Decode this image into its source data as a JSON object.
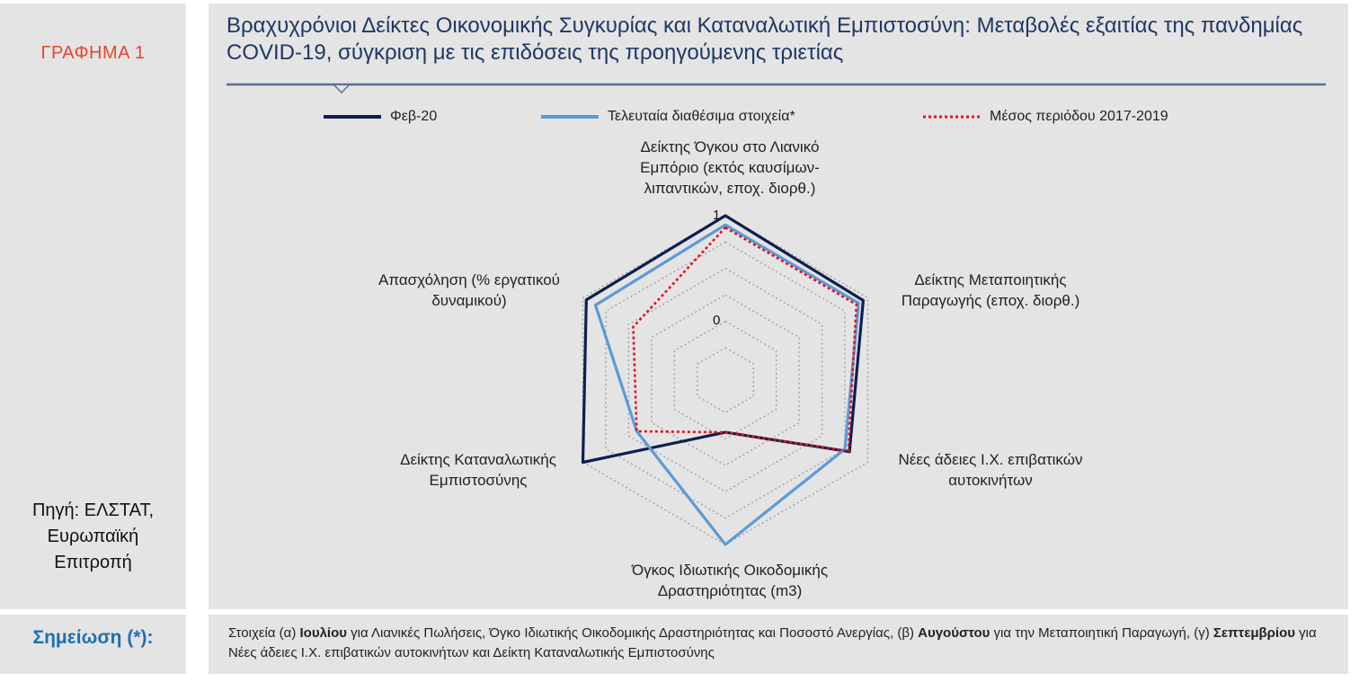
{
  "left_panel": {
    "chart_label": "ΓΡΑΦΗΜΑ 1",
    "source": "Πηγή: ΕΛΣΤΑΤ,\nΕυρωπαϊκή\nΕπιτροπή"
  },
  "title": "Βραχυχρόνιοι Δείκτες Οικονομικής Συγκυρίας και Καταναλωτική Εμπιστοσύνη: Μεταβολές εξαιτίας της πανδημίας COVID-19, σύγκριση με τις επιδόσεις της προηγούμενης τριετίας",
  "colors": {
    "feb20": "#0d1f4f",
    "latest": "#5b9bd5",
    "avg": "#e3101c",
    "grid": "#9e9e9e",
    "title": "#1f3864",
    "chart_label": "#e8452c",
    "note_label": "#1f6fb5"
  },
  "chart_data": {
    "type": "radar",
    "rlim": [
      0,
      1
    ],
    "tick_labels": [
      "0",
      "1"
    ],
    "grid": true,
    "legend_position": "top",
    "axes": [
      "Δείκτης Όγκου στο Λιανικό\nΕμπόριο (εκτός καυσίμων-\nλιπαντικών, εποχ. διορθ.)",
      "Δείκτης Μεταποιητικής\nΠαραγωγής (εποχ. διορθ.)",
      "Νέες άδειες Ι.Χ. επιβατικών\nαυτοκινήτων",
      "Όγκος Ιδιωτικής Οικοδομικής\nΔραστηριότητας (m3)",
      "Δείκτης Καταναλωτικής\nΕμπιστοσύνης",
      "Απασχόληση (% εργατικού\nδυναμικού)"
    ],
    "series": [
      {
        "name": "Φεβ-20",
        "values": [
          1.0,
          0.96,
          0.84,
          0.15,
          1.0,
          0.97
        ]
      },
      {
        "name": "Τελευταία διαθέσιμα στοιχεία*",
        "values": [
          0.93,
          0.92,
          0.8,
          1.0,
          0.53,
          0.89
        ]
      },
      {
        "name": "Μέσος περιόδου 2017-2019",
        "values": [
          0.91,
          0.9,
          0.83,
          0.15,
          0.53,
          0.56
        ]
      }
    ]
  },
  "note": {
    "label": "Σημείωση (*):",
    "parts": [
      {
        "text": "Στοιχεία (α) ",
        "bold": false
      },
      {
        "text": "Ιουλίου",
        "bold": true
      },
      {
        "text": " για Λιανικές Πωλήσεις, Όγκο Ιδιωτικής Οικοδομικής Δραστηριότητας και Ποσοστό Ανεργίας, (β) ",
        "bold": false
      },
      {
        "text": "Αυγούστου",
        "bold": true
      },
      {
        "text": " για την Μεταποιητική Παραγωγή, (γ) ",
        "bold": false
      },
      {
        "text": "Σεπτεμβρίου",
        "bold": true
      },
      {
        "text": " για Νέες άδειες Ι.Χ. επιβατικών αυτοκινήτων και Δείκτη Καταναλωτικής Εμπιστοσύνης",
        "bold": false
      }
    ]
  }
}
